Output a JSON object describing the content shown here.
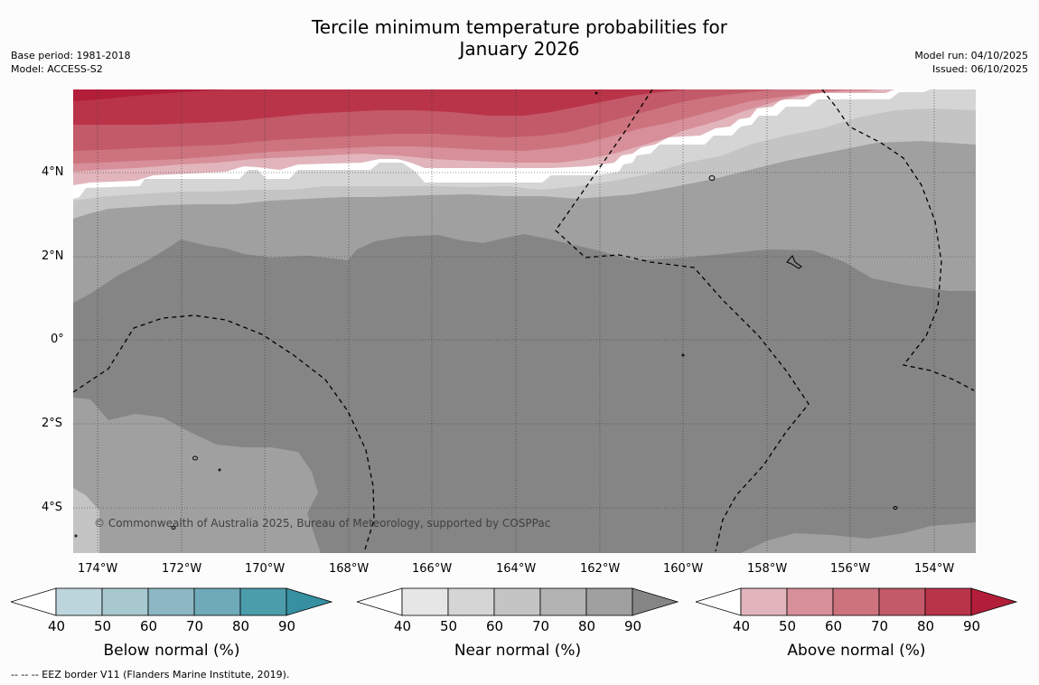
{
  "title": {
    "line1": "Tercile minimum temperature probabilities for",
    "line2": "January 2026"
  },
  "meta": {
    "base_period": "Base period: 1981-2018",
    "model": "Model: ACCESS-S2",
    "model_run": "Model run: 04/10/2025",
    "issued": "Issued: 06/10/2025"
  },
  "map": {
    "lat_labels": [
      "4°N",
      "2°N",
      "0°",
      "2°S",
      "4°S"
    ],
    "lon_labels": [
      "174°W",
      "172°W",
      "170°W",
      "168°W",
      "166°W",
      "164°W",
      "162°W",
      "160°W",
      "158°W",
      "156°W",
      "154°W"
    ],
    "copyright": "© Commonwealth of Australia 2025, Bureau of Meteorology, supported by COSPPac"
  },
  "colorbars": [
    {
      "name": "below",
      "label": "Below normal (%)",
      "ticks": [
        "40",
        "50",
        "60",
        "70",
        "80",
        "90"
      ],
      "colors": [
        "#ffffff",
        "#bdd5dc",
        "#a6c8ce",
        "#8cb8c3",
        "#6eaab8",
        "#4c9dac",
        "#3690a2"
      ]
    },
    {
      "name": "near",
      "label": "Near normal (%)",
      "ticks": [
        "40",
        "50",
        "60",
        "70",
        "80",
        "90"
      ],
      "colors": [
        "#ffffff",
        "#e6e6e6",
        "#d5d5d5",
        "#c4c4c4",
        "#b3b3b3",
        "#a0a0a0",
        "#858585"
      ]
    },
    {
      "name": "above",
      "label": "Above normal (%)",
      "ticks": [
        "40",
        "50",
        "60",
        "70",
        "80",
        "90"
      ],
      "colors": [
        "#ffffff",
        "#e1b5bb",
        "#d78f99",
        "#cc737e",
        "#c35a69",
        "#ba3449",
        "#b21e3a"
      ]
    }
  ],
  "footnote": "--  --  -- EEZ border V11 (Flanders Marine Institute, 2019)."
}
